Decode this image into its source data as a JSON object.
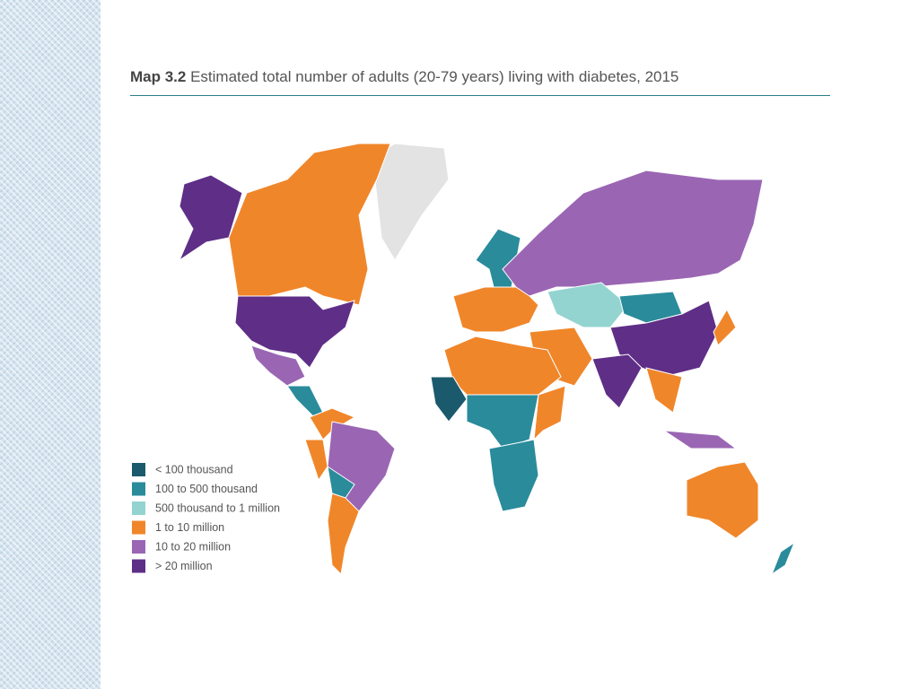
{
  "title": {
    "label": "Map 3.2",
    "text": "Estimated total number of adults (20-79 years) living with diabetes, 2015"
  },
  "legend": {
    "items": [
      {
        "label": "< 100 thousand",
        "color": "#1b5a6d"
      },
      {
        "label": "100 to 500 thousand",
        "color": "#2a8b9b"
      },
      {
        "label": "500 thousand to 1 million",
        "color": "#93d4d0"
      },
      {
        "label": "1 to 10 million",
        "color": "#f0862a"
      },
      {
        "label": "10 to 20 million",
        "color": "#9a66b3"
      },
      {
        "label": "> 20 million",
        "color": "#5f2e87"
      }
    ]
  }
}
